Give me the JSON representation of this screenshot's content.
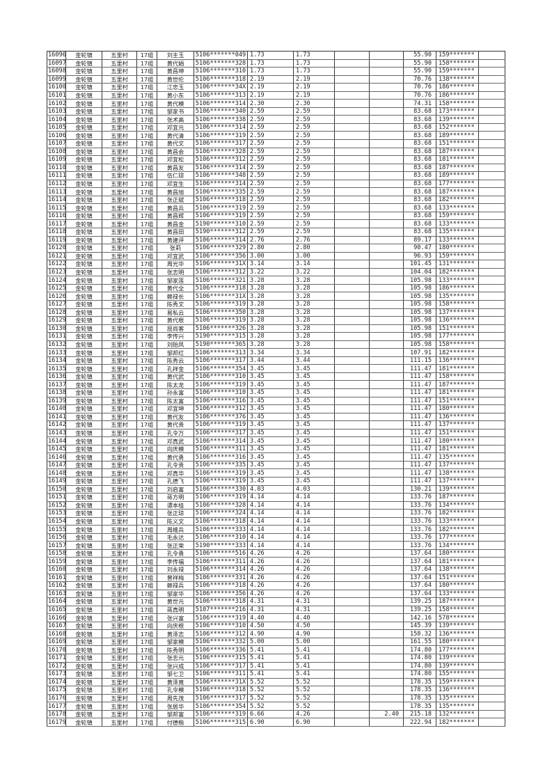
{
  "table": {
    "rows": [
      [
        "16096",
        "金轮镇",
        "五里村",
        "17组",
        "刘主玉",
        "5106*******049",
        "1.73",
        "1.73",
        "",
        "",
        "55.90",
        "159*******"
      ],
      [
        "16097",
        "金轮镇",
        "五里村",
        "17组",
        "黄代娟",
        "5106*******328",
        "1.73",
        "1.73",
        "",
        "",
        "55.90",
        "158*******"
      ],
      [
        "16098",
        "金轮镇",
        "五里村",
        "17组",
        "黄昌坤",
        "5106*******310",
        "1.73",
        "1.73",
        "",
        "",
        "55.90",
        "159*******"
      ],
      [
        "16099",
        "金轮镇",
        "五里村",
        "17组",
        "黄世伦",
        "5106*******318",
        "2.19",
        "2.19",
        "",
        "",
        "70.76",
        "138*******"
      ],
      [
        "16100",
        "金轮镇",
        "五里村",
        "17组",
        "江忠玉",
        "5106*******34X",
        "2.19",
        "2.19",
        "",
        "",
        "70.76",
        "186*******"
      ],
      [
        "16101",
        "金轮镇",
        "五里村",
        "17组",
        "黄小东",
        "5106*******313",
        "2.19",
        "2.19",
        "",
        "",
        "70.76",
        "186*******"
      ],
      [
        "16102",
        "金轮镇",
        "五里村",
        "17组",
        "黄代模",
        "5106*******314",
        "2.30",
        "2.30",
        "",
        "",
        "74.31",
        "158*******"
      ],
      [
        "16103",
        "金轮镇",
        "五里村",
        "17组",
        "邹家书",
        "5106*******340",
        "2.59",
        "2.59",
        "",
        "",
        "83.68",
        "173*******"
      ],
      [
        "16104",
        "金轮镇",
        "五里村",
        "17组",
        "张术高",
        "5106*******338",
        "2.59",
        "2.59",
        "",
        "",
        "83.68",
        "139*******"
      ],
      [
        "16105",
        "金轮镇",
        "五里村",
        "17组",
        "邓宜元",
        "5106*******314",
        "2.59",
        "2.59",
        "",
        "",
        "83.68",
        "152*******"
      ],
      [
        "16106",
        "金轮镇",
        "五里村",
        "17组",
        "黄代清",
        "5106*******319",
        "2.59",
        "2.59",
        "",
        "",
        "83.68",
        "189*******"
      ],
      [
        "16107",
        "金轮镇",
        "五里村",
        "17组",
        "黄代文",
        "5106*******317",
        "2.59",
        "2.59",
        "",
        "",
        "83.68",
        "151*******"
      ],
      [
        "16108",
        "金轮镇",
        "五里村",
        "17组",
        "黄昌会",
        "5106*******328",
        "2.59",
        "2.59",
        "",
        "",
        "83.68",
        "187*******"
      ],
      [
        "16109",
        "金轮镇",
        "五里村",
        "17组",
        "邓宜松",
        "5106*******312",
        "2.59",
        "2.59",
        "",
        "",
        "83.68",
        "181*******"
      ],
      [
        "16110",
        "金轮镇",
        "五里村",
        "17组",
        "黄昌友",
        "5106*******314",
        "2.59",
        "2.59",
        "",
        "",
        "83.68",
        "187*******"
      ],
      [
        "16111",
        "金轮镇",
        "五里村",
        "17组",
        "伍仁琼",
        "5106*******348",
        "2.59",
        "2.59",
        "",
        "",
        "83.68",
        "189*******"
      ],
      [
        "16112",
        "金轮镇",
        "五里村",
        "17组",
        "邓宜生",
        "5106*******314",
        "2.59",
        "2.59",
        "",
        "",
        "83.68",
        "177*******"
      ],
      [
        "16113",
        "金轮镇",
        "五里村",
        "17组",
        "黄昌旭",
        "5106*******335",
        "2.59",
        "2.59",
        "",
        "",
        "83.68",
        "187*******"
      ],
      [
        "16114",
        "金轮镇",
        "五里村",
        "17组",
        "张正斌",
        "5106*******318",
        "2.59",
        "2.59",
        "",
        "",
        "83.68",
        "182*******"
      ],
      [
        "16115",
        "金轮镇",
        "五里村",
        "17组",
        "黄昌兵",
        "5106*******319",
        "2.59",
        "2.59",
        "",
        "",
        "83.68",
        "133*******"
      ],
      [
        "16116",
        "金轮镇",
        "五里村",
        "17组",
        "黄昌辉",
        "5106*******319",
        "2.59",
        "2.59",
        "",
        "",
        "83.68",
        "159*******"
      ],
      [
        "16117",
        "金轮镇",
        "五里村",
        "17组",
        "黄昌金",
        "5190*******310",
        "2.59",
        "2.59",
        "",
        "",
        "83.68",
        "133*******"
      ],
      [
        "16118",
        "金轮镇",
        "五里村",
        "17组",
        "黄昌田",
        "5190*******312",
        "2.59",
        "2.59",
        "",
        "",
        "83.68",
        "135*******"
      ],
      [
        "16119",
        "金轮镇",
        "五里村",
        "17组",
        "黄建评",
        "5106*******314",
        "2.76",
        "2.76",
        "",
        "",
        "89.17",
        "133*******"
      ],
      [
        "16120",
        "金轮镇",
        "五里村",
        "17组",
        "张莉",
        "5106*******329",
        "2.80",
        "2.80",
        "",
        "",
        "90.47",
        "180*******"
      ],
      [
        "16121",
        "金轮镇",
        "五里村",
        "17组",
        "邓宜武",
        "5106*******356",
        "3.00",
        "3.00",
        "",
        "",
        "96.93",
        "159*******"
      ],
      [
        "16122",
        "金轮镇",
        "五里村",
        "17组",
        "周光华",
        "5106*******31X",
        "3.14",
        "3.14",
        "",
        "",
        "101.45",
        "131*******"
      ],
      [
        "16123",
        "金轮镇",
        "五里村",
        "17组",
        "张志明",
        "5106*******312",
        "3.22",
        "3.22",
        "",
        "",
        "104.04",
        "182*******"
      ],
      [
        "16124",
        "金轮镇",
        "五里村",
        "17组",
        "邹家莲",
        "5106*******321",
        "3.28",
        "3.28",
        "",
        "",
        "105.98",
        "133*******"
      ],
      [
        "16125",
        "金轮镇",
        "五里村",
        "17组",
        "黄代全",
        "5106*******318",
        "3.28",
        "3.28",
        "",
        "",
        "105.98",
        "186*******"
      ],
      [
        "16126",
        "金轮镇",
        "五里村",
        "17组",
        "赖禄长",
        "5106*******31X",
        "3.28",
        "3.28",
        "",
        "",
        "105.98",
        "135*******"
      ],
      [
        "16127",
        "金轮镇",
        "五里村",
        "17组",
        "陈秀文",
        "5106*******319",
        "3.28",
        "3.28",
        "",
        "",
        "105.98",
        "158*******"
      ],
      [
        "16128",
        "金轮镇",
        "五里村",
        "17组",
        "易私云",
        "5106*******350",
        "3.28",
        "3.28",
        "",
        "",
        "105.98",
        "137*******"
      ],
      [
        "16129",
        "金轮镇",
        "五里村",
        "17组",
        "黄代根",
        "5106*******319",
        "3.28",
        "3.28",
        "",
        "",
        "105.98",
        "136*******"
      ],
      [
        "16130",
        "金轮镇",
        "五里村",
        "17组",
        "屈尚客",
        "5106*******326",
        "3.28",
        "3.28",
        "",
        "",
        "105.98",
        "151*******"
      ],
      [
        "16131",
        "金轮镇",
        "五里村",
        "17组",
        "李传兴",
        "5190*******315",
        "3.28",
        "3.28",
        "",
        "",
        "105.98",
        "177*******"
      ],
      [
        "16132",
        "金轮镇",
        "五里村",
        "17组",
        "刘贻凤",
        "5190*******365",
        "3.28",
        "3.28",
        "",
        "",
        "105.98",
        "158*******"
      ],
      [
        "16133",
        "金轮镇",
        "五里村",
        "17组",
        "邹邦红",
        "5106*******313",
        "3.34",
        "3.34",
        "",
        "",
        "107.91",
        "182*******"
      ],
      [
        "16134",
        "金轮镇",
        "五里村",
        "17组",
        "陈秀云",
        "5106*******317",
        "3.44",
        "3.44",
        "",
        "",
        "111.15",
        "136*******"
      ],
      [
        "16135",
        "金轮镇",
        "五里村",
        "17组",
        "孔祥金",
        "5106*******354",
        "3.45",
        "3.45",
        "",
        "",
        "111.47",
        "181*******"
      ],
      [
        "16136",
        "金轮镇",
        "五里村",
        "17组",
        "黄代武",
        "5106*******310",
        "3.45",
        "3.45",
        "",
        "",
        "111.47",
        "158*******"
      ],
      [
        "16137",
        "金轮镇",
        "五里村",
        "17组",
        "陈太龙",
        "5106*******319",
        "3.45",
        "3.45",
        "",
        "",
        "111.47",
        "187*******"
      ],
      [
        "16138",
        "金轮镇",
        "五里村",
        "17组",
        "孙永富",
        "5106*******310",
        "3.45",
        "3.45",
        "",
        "",
        "111.47",
        "181*******"
      ],
      [
        "16139",
        "金轮镇",
        "五里村",
        "17组",
        "陈太富",
        "5106*******316",
        "3.45",
        "3.45",
        "",
        "",
        "111.47",
        "151*******"
      ],
      [
        "16140",
        "金轮镇",
        "五里村",
        "17组",
        "邓宜坤",
        "5106*******312",
        "3.45",
        "3.45",
        "",
        "",
        "111.47",
        "180*******"
      ],
      [
        "16141",
        "金轮镇",
        "五里村",
        "17组",
        "黄代友",
        "5106*******376",
        "3.45",
        "3.45",
        "",
        "",
        "111.47",
        "136*******"
      ],
      [
        "16142",
        "金轮镇",
        "五里村",
        "17组",
        "黄代贵",
        "5106*******319",
        "3.45",
        "3.45",
        "",
        "",
        "111.47",
        "137*******"
      ],
      [
        "16143",
        "金轮镇",
        "五里村",
        "17组",
        "孔令万",
        "5106*******317",
        "3.45",
        "3.45",
        "",
        "",
        "111.47",
        "151*******"
      ],
      [
        "16144",
        "金轮镇",
        "五里村",
        "17组",
        "邓真武",
        "5106*******314",
        "3.45",
        "3.45",
        "",
        "",
        "111.47",
        "180*******"
      ],
      [
        "16145",
        "金轮镇",
        "五里村",
        "17组",
        "向庆模",
        "5106*******311",
        "3.45",
        "3.45",
        "",
        "",
        "111.47",
        "181*******"
      ],
      [
        "16146",
        "金轮镇",
        "五里村",
        "17组",
        "黄代勇",
        "5106*******316",
        "3.45",
        "3.45",
        "",
        "",
        "111.47",
        "135*******"
      ],
      [
        "16147",
        "金轮镇",
        "五里村",
        "17组",
        "孔令贵",
        "5106*******335",
        "3.45",
        "3.45",
        "",
        "",
        "111.47",
        "137*******"
      ],
      [
        "16148",
        "金轮镇",
        "五里村",
        "17组",
        "邓真华",
        "5106*******319",
        "3.45",
        "3.45",
        "",
        "",
        "111.47",
        "138*******"
      ],
      [
        "16149",
        "金轮镇",
        "五里村",
        "17组",
        "孔德飞",
        "5106*******319",
        "3.45",
        "3.45",
        "",
        "",
        "111.47",
        "137*******"
      ],
      [
        "16150",
        "金轮镇",
        "五里村",
        "17组",
        "刘启富",
        "5106*******330",
        "4.03",
        "4.03",
        "",
        "",
        "130.21",
        "139*******"
      ],
      [
        "16151",
        "金轮镇",
        "五里村",
        "17组",
        "蒋方明",
        "5106*******319",
        "4.14",
        "4.14",
        "",
        "",
        "133.76",
        "187*******"
      ],
      [
        "16152",
        "金轮镇",
        "五里村",
        "17组",
        "谭本桂",
        "5106*******328",
        "4.14",
        "4.14",
        "",
        "",
        "133.76",
        "134*******"
      ],
      [
        "16153",
        "金轮镇",
        "五里村",
        "17组",
        "张正琼",
        "5106*******324",
        "4.14",
        "4.14",
        "",
        "",
        "133.76",
        "182*******"
      ],
      [
        "16154",
        "金轮镇",
        "五里村",
        "17组",
        "陈义文",
        "5106*******318",
        "4.14",
        "4.14",
        "",
        "",
        "133.76",
        "133*******"
      ],
      [
        "16155",
        "金轮镇",
        "五里村",
        "17组",
        "周維兵",
        "5106*******333",
        "4.14",
        "4.14",
        "",
        "",
        "133.76",
        "182*******"
      ],
      [
        "16156",
        "金轮镇",
        "五里村",
        "17组",
        "毛永达",
        "5106*******310",
        "4.14",
        "4.14",
        "",
        "",
        "133.76",
        "177*******"
      ],
      [
        "16157",
        "金轮镇",
        "五里村",
        "17组",
        "张正荣",
        "5190*******333",
        "4.14",
        "4.14",
        "",
        "",
        "133.76",
        "134*******"
      ],
      [
        "16158",
        "金轮镇",
        "五里村",
        "17组",
        "孔令勇",
        "5106*******516",
        "4.26",
        "4.26",
        "",
        "",
        "137.64",
        "180*******"
      ],
      [
        "16159",
        "金轮镇",
        "五里村",
        "17组",
        "李传福",
        "5106*******311",
        "4.26",
        "4.26",
        "",
        "",
        "137.64",
        "181*******"
      ],
      [
        "16160",
        "金轮镇",
        "五里村",
        "17组",
        "刘永禄",
        "5106*******314",
        "4.26",
        "4.26",
        "",
        "",
        "137.64",
        "138*******"
      ],
      [
        "16161",
        "金轮镇",
        "五里村",
        "17组",
        "曾祥梅",
        "5106*******331",
        "4.26",
        "4.26",
        "",
        "",
        "137.64",
        "151*******"
      ],
      [
        "16162",
        "金轮镇",
        "五里村",
        "17组",
        "赖禄兵",
        "5106*******318",
        "4.26",
        "4.26",
        "",
        "",
        "137.64",
        "180*******"
      ],
      [
        "16163",
        "金轮镇",
        "五里村",
        "17组",
        "邹家华",
        "5106*******356",
        "4.26",
        "4.26",
        "",
        "",
        "137.64",
        "133*******"
      ],
      [
        "16164",
        "金轮镇",
        "五里村",
        "17组",
        "黄世元",
        "5106*******318",
        "4.31",
        "4.31",
        "",
        "",
        "139.25",
        "187*******"
      ],
      [
        "16165",
        "金轮镇",
        "五里村",
        "17组",
        "蒋真明",
        "5107*******216",
        "4.31",
        "4.31",
        "",
        "",
        "139.25",
        "158*******"
      ],
      [
        "16166",
        "金轮镇",
        "五里村",
        "17组",
        "张兴富",
        "5106*******319",
        "4.40",
        "4.40",
        "",
        "",
        "142.16",
        "578*******"
      ],
      [
        "16167",
        "金轮镇",
        "五里村",
        "17组",
        "向庆根",
        "5106*******310",
        "4.50",
        "4.50",
        "",
        "",
        "145.39",
        "139*******"
      ],
      [
        "16168",
        "金轮镇",
        "五里村",
        "17组",
        "黄泽志",
        "5106*******312",
        "4.90",
        "4.90",
        "",
        "",
        "158.32",
        "136*******"
      ],
      [
        "16169",
        "金轮镇",
        "五里村",
        "17组",
        "邹家模",
        "5106*******332",
        "5.00",
        "5.00",
        "",
        "",
        "161.55",
        "180*******"
      ],
      [
        "16170",
        "金轮镇",
        "五里村",
        "17组",
        "陈秀明",
        "5106*******336",
        "5.41",
        "5.41",
        "",
        "",
        "174.80",
        "177*******"
      ],
      [
        "16171",
        "金轮镇",
        "五里村",
        "17组",
        "张志元",
        "5106*******315",
        "5.41",
        "5.41",
        "",
        "",
        "174.80",
        "139*******"
      ],
      [
        "16172",
        "金轮镇",
        "五里村",
        "17组",
        "张兴成",
        "5106*******317",
        "5.41",
        "5.41",
        "",
        "",
        "174.80",
        "139*******"
      ],
      [
        "16173",
        "金轮镇",
        "五里村",
        "17组",
        "邹七卫",
        "5106*******311",
        "5.41",
        "5.41",
        "",
        "",
        "174.80",
        "155*******"
      ],
      [
        "16174",
        "金轮镇",
        "五里村",
        "17组",
        "黄泽竟",
        "5106*******31X",
        "5.52",
        "5.52",
        "",
        "",
        "178.35",
        "159*******"
      ],
      [
        "16175",
        "金轮镇",
        "五里村",
        "17组",
        "孔令模",
        "5106*******318",
        "5.52",
        "5.52",
        "",
        "",
        "178.35",
        "136*******"
      ],
      [
        "16176",
        "金轮镇",
        "五里村",
        "17组",
        "周先茂",
        "5106*******317",
        "5.52",
        "5.52",
        "",
        "",
        "178.35",
        "135*******"
      ],
      [
        "16177",
        "金轮镇",
        "五里村",
        "17组",
        "张居华",
        "5106*******354",
        "5.52",
        "5.52",
        "",
        "",
        "178.35",
        "135*******"
      ],
      [
        "16178",
        "金轮镇",
        "五里村",
        "17组",
        "邹邦富",
        "5106*******319",
        "6.66",
        "4.26",
        "",
        "2.40",
        "215.18",
        "132*******"
      ],
      [
        "16179",
        "金轮镇",
        "五里村",
        "17组",
        "付德楷",
        "5106*******315",
        "6.90",
        "6.90",
        "",
        "",
        "222.94",
        "182*******"
      ]
    ]
  }
}
